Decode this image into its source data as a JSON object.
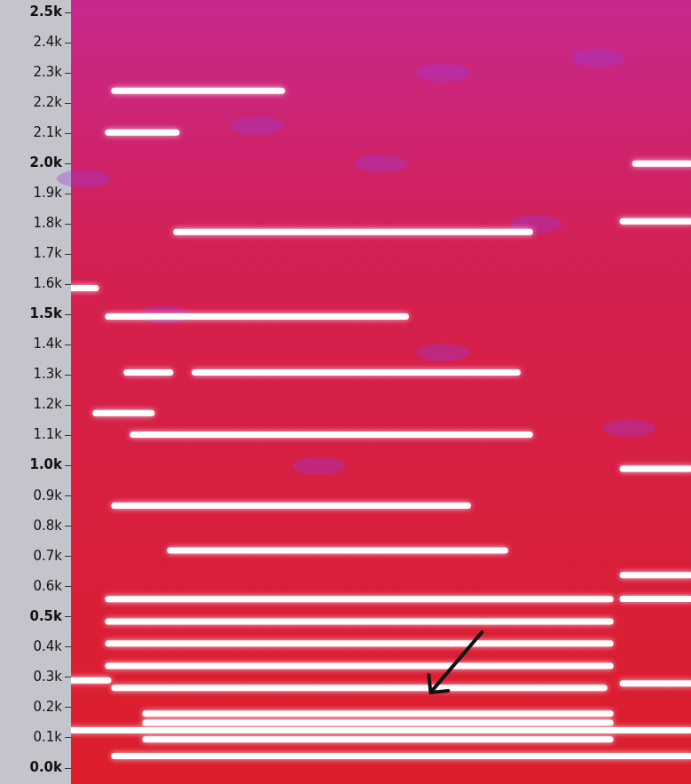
{
  "chart_data": {
    "type": "spectrogram",
    "xlim": [
      0,
      100
    ],
    "ylim": [
      0,
      2500
    ],
    "yticks": [
      {
        "value": 0,
        "label": "0.0k"
      },
      {
        "value": 100,
        "label": "0.1k"
      },
      {
        "value": 200,
        "label": "0.2k"
      },
      {
        "value": 300,
        "label": "0.3k"
      },
      {
        "value": 400,
        "label": "0.4k"
      },
      {
        "value": 500,
        "label": "0.5k"
      },
      {
        "value": 600,
        "label": "0.6k"
      },
      {
        "value": 700,
        "label": "0.7k"
      },
      {
        "value": 800,
        "label": "0.8k"
      },
      {
        "value": 900,
        "label": "0.9k"
      },
      {
        "value": 1000,
        "label": "1.0k"
      },
      {
        "value": 1100,
        "label": "1.1k"
      },
      {
        "value": 1200,
        "label": "1.2k"
      },
      {
        "value": 1300,
        "label": "1.3k"
      },
      {
        "value": 1400,
        "label": "1.4k"
      },
      {
        "value": 1500,
        "label": "1.5k"
      },
      {
        "value": 1600,
        "label": "1.6k"
      },
      {
        "value": 1700,
        "label": "1.7k"
      },
      {
        "value": 1800,
        "label": "1.8k"
      },
      {
        "value": 1900,
        "label": "1.9k"
      },
      {
        "value": 2000,
        "label": "2.0k"
      },
      {
        "value": 2100,
        "label": "2.1k"
      },
      {
        "value": 2200,
        "label": "2.2k"
      },
      {
        "value": 2300,
        "label": "2.3k"
      },
      {
        "value": 2400,
        "label": "2.4k"
      },
      {
        "value": 2500,
        "label": "2.5k"
      }
    ],
    "tick_labels": "y",
    "grid": false,
    "color": "#ffffff",
    "bands": [
      {
        "x": [
          7,
          100
        ],
        "y": 40
      },
      {
        "x": [
          12,
          87
        ],
        "y": 95
      },
      {
        "x": [
          0,
          100
        ],
        "y": 125
      },
      {
        "x": [
          12,
          87
        ],
        "y": 150
      },
      {
        "x": [
          12,
          87
        ],
        "y": 180
      },
      {
        "x": [
          7,
          86
        ],
        "y": 265
      },
      {
        "x": [
          0,
          6
        ],
        "y": 290
      },
      {
        "x": [
          89,
          100
        ],
        "y": 280
      },
      {
        "x": [
          6,
          87
        ],
        "y": 338
      },
      {
        "x": [
          6,
          87
        ],
        "y": 412
      },
      {
        "x": [
          6,
          87
        ],
        "y": 485
      },
      {
        "x": [
          6,
          87
        ],
        "y": 559
      },
      {
        "x": [
          89,
          100
        ],
        "y": 560
      },
      {
        "x": [
          89,
          100
        ],
        "y": 638
      },
      {
        "x": [
          16,
          70
        ],
        "y": 720
      },
      {
        "x": [
          7,
          64
        ],
        "y": 868
      },
      {
        "x": [
          89,
          100
        ],
        "y": 990
      },
      {
        "x": [
          10,
          74
        ],
        "y": 1103
      },
      {
        "x": [
          4,
          13
        ],
        "y": 1174
      },
      {
        "x": [
          9,
          16
        ],
        "y": 1309
      },
      {
        "x": [
          20,
          72
        ],
        "y": 1309
      },
      {
        "x": [
          6,
          54
        ],
        "y": 1494
      },
      {
        "x": [
          0,
          4
        ],
        "y": 1588
      },
      {
        "x": [
          17,
          74
        ],
        "y": 1774
      },
      {
        "x": [
          89,
          100
        ],
        "y": 1809
      },
      {
        "x": [
          91,
          100
        ],
        "y": 2000
      },
      {
        "x": [
          6,
          17
        ],
        "y": 2103
      },
      {
        "x": [
          7,
          34
        ],
        "y": 2241
      }
    ]
  }
}
